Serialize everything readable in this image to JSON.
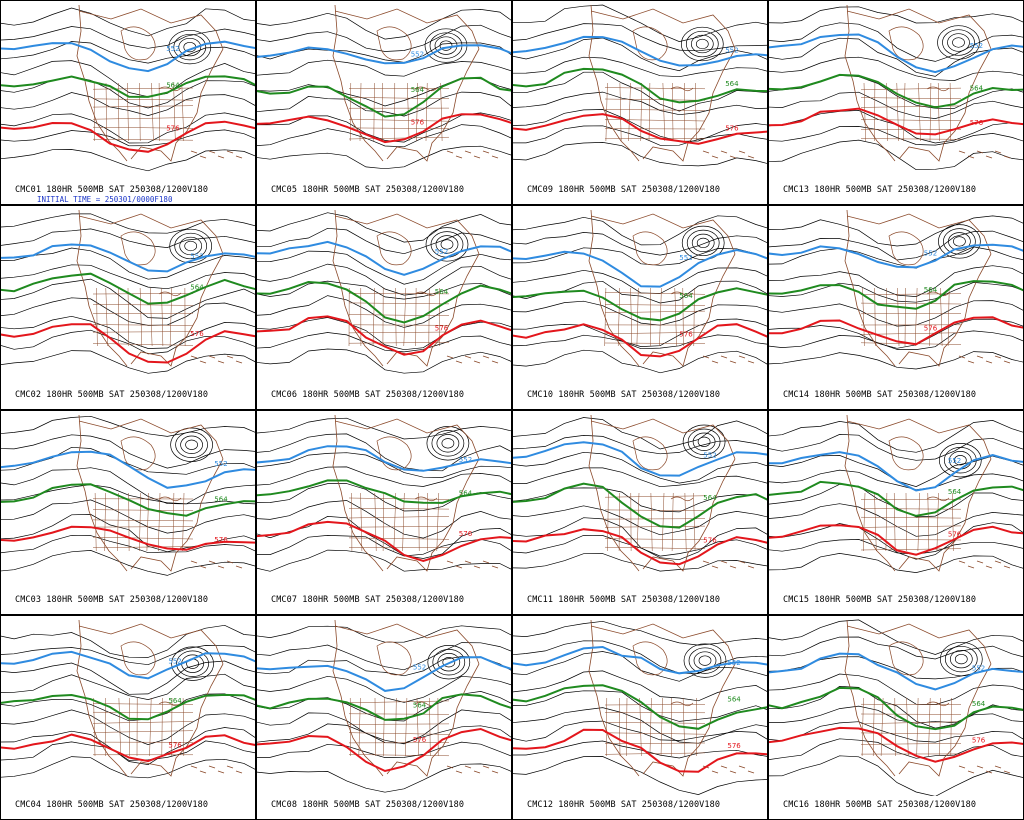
{
  "colors": {
    "background": "#ffffff",
    "height_contours": "#000000",
    "contour_552": "#2f8be0",
    "contour_564": "#1f8a1f",
    "contour_576": "#e3161c",
    "coastlines_borders": "#8b4a2b",
    "caption_text": "#000000",
    "initial_time_text": "#1b35c8"
  },
  "contour_labels": {
    "blue": "552",
    "green": "564",
    "red": "576"
  },
  "panels": [
    {
      "caption": "CMC01 180HR 500MB SAT 250308/1200V180",
      "subcaption": "INITIAL TIME = 250301/0000F180"
    },
    {
      "caption": "CMC05 180HR 500MB SAT 250308/1200V180"
    },
    {
      "caption": "CMC09 180HR 500MB SAT 250308/1200V180"
    },
    {
      "caption": "CMC13 180HR 500MB SAT 250308/1200V180"
    },
    {
      "caption": "CMC02 180HR 500MB SAT 250308/1200V180"
    },
    {
      "caption": "CMC06 180HR 500MB SAT 250308/1200V180"
    },
    {
      "caption": "CMC10 180HR 500MB SAT 250308/1200V180"
    },
    {
      "caption": "CMC14 180HR 500MB SAT 250308/1200V180"
    },
    {
      "caption": "CMC03 180HR 500MB SAT 250308/1200V180"
    },
    {
      "caption": "CMC07 180HR 500MB SAT 250308/1200V180"
    },
    {
      "caption": "CMC11 180HR 500MB SAT 250308/1200V180"
    },
    {
      "caption": "CMC15 180HR 500MB SAT 250308/1200V180"
    },
    {
      "caption": "CMC04 180HR 500MB SAT 250308/1200V180"
    },
    {
      "caption": "CMC08 180HR 500MB SAT 250308/1200V180"
    },
    {
      "caption": "CMC12 180HR 500MB SAT 250308/1200V180"
    },
    {
      "caption": "CMC16 180HR 500MB SAT 250308/1200V180"
    }
  ]
}
